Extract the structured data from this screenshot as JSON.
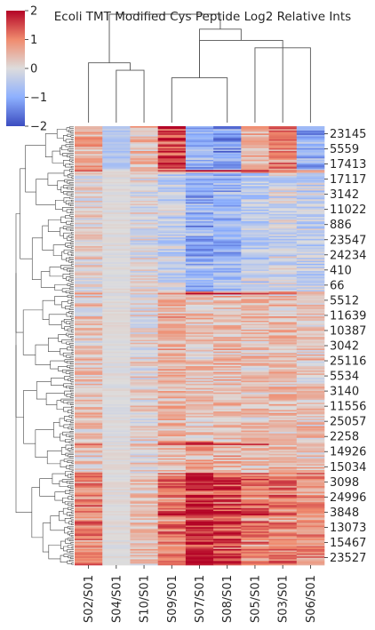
{
  "chart_data": {
    "type": "heatmap",
    "title": "Ecoli TMT Modified Cys Peptide Log2 Relative Ints",
    "columns": [
      "S02/S01",
      "S04/S01",
      "S10/S01",
      "S09/S01",
      "S07/S01",
      "S08/S01",
      "S05/S01",
      "S03/S01",
      "S06/S01"
    ],
    "row_labels": [
      "23145",
      "5559",
      "17413",
      "17117",
      "3142",
      "11022",
      "886",
      "23547",
      "24234",
      "410",
      "66",
      "5512",
      "11639",
      "10387",
      "3042",
      "25116",
      "5534",
      "3140",
      "11556",
      "25057",
      "2258",
      "14926",
      "15034",
      "3098",
      "24996",
      "3848",
      "13073",
      "15467",
      "23527"
    ],
    "colorbar": {
      "colormap": "coolwarm",
      "range": [
        -2,
        2
      ],
      "ticks": [
        "2",
        "1",
        "0",
        "−1",
        "−2"
      ],
      "tick_values": [
        2,
        1,
        0,
        -1,
        -2
      ]
    },
    "clustering": {
      "row_dendrogram": true,
      "column_dendrogram": true,
      "column_order_merges": [
        [
          6,
          8,
          1.0
        ],
        [
          3,
          5,
          0.6
        ],
        [
          5,
          7,
          1.1
        ],
        [
          1,
          2,
          0.7
        ],
        [
          0,
          1,
          0.8
        ],
        [
          3,
          7,
          1.25
        ],
        [
          0,
          3,
          1.45
        ]
      ]
    },
    "row_blocks": [
      {
        "from": "23145",
        "to": "17413",
        "values": [
          0.6,
          -0.5,
          0.4,
          1.6,
          -0.9,
          -1.2,
          0.5,
          1.0,
          -1.0
        ]
      },
      {
        "from": "17117",
        "to": "66",
        "values": [
          0.1,
          0.0,
          0.0,
          -0.3,
          -0.9,
          -0.8,
          -0.4,
          -0.2,
          -0.3
        ]
      },
      {
        "from": "5512",
        "to": "2258",
        "values": [
          0.3,
          0.0,
          0.1,
          0.5,
          0.3,
          0.4,
          0.3,
          0.4,
          0.3
        ]
      },
      {
        "from": "14926",
        "to": "15034",
        "values": [
          0.3,
          0.0,
          0.1,
          0.4,
          0.5,
          0.5,
          0.4,
          0.4,
          0.3
        ]
      },
      {
        "from": "3098",
        "to": "23527",
        "values": [
          0.9,
          0.0,
          0.3,
          1.1,
          1.7,
          1.4,
          1.1,
          1.0,
          0.8
        ]
      }
    ]
  }
}
